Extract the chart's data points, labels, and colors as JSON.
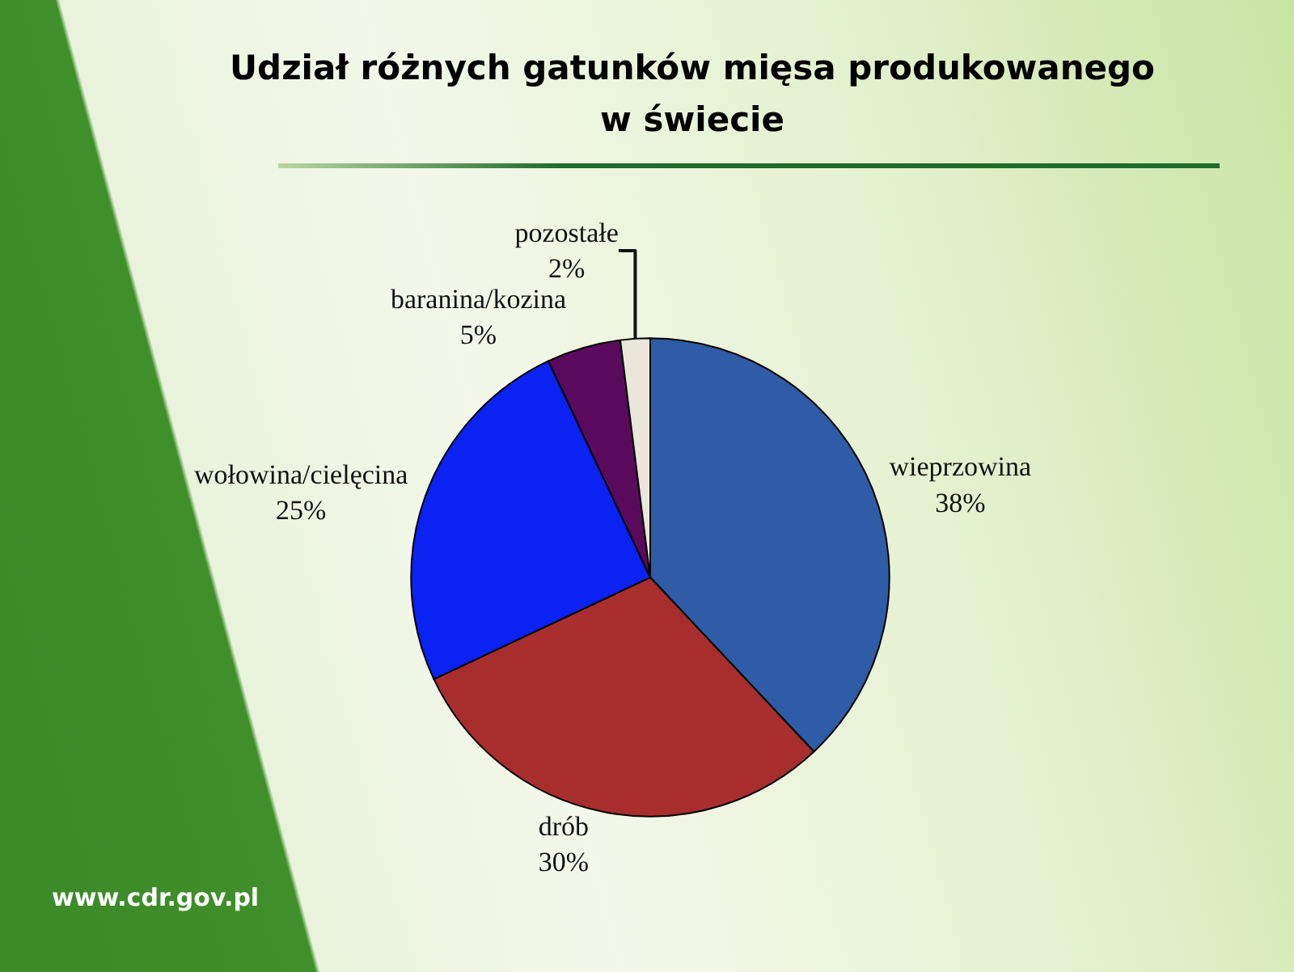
{
  "chart_data": {
    "type": "pie",
    "title": "Udział różnych gatunków mięsa produkowanego w świecie",
    "categories": [
      "wieprzowina",
      "drób",
      "wołowina/cielęcina",
      "baranina/kozina",
      "pozostałe"
    ],
    "values": [
      38,
      30,
      25,
      5,
      2
    ],
    "colors": [
      "#2e5ca6",
      "#a82e2e",
      "#0a22f2",
      "#5a0a5c",
      "#ebe6da"
    ],
    "value_labels": [
      "38%",
      "30%",
      "25%",
      "5%",
      "2%"
    ],
    "annotations": [
      "www.cdr.gov.pl"
    ]
  }
}
